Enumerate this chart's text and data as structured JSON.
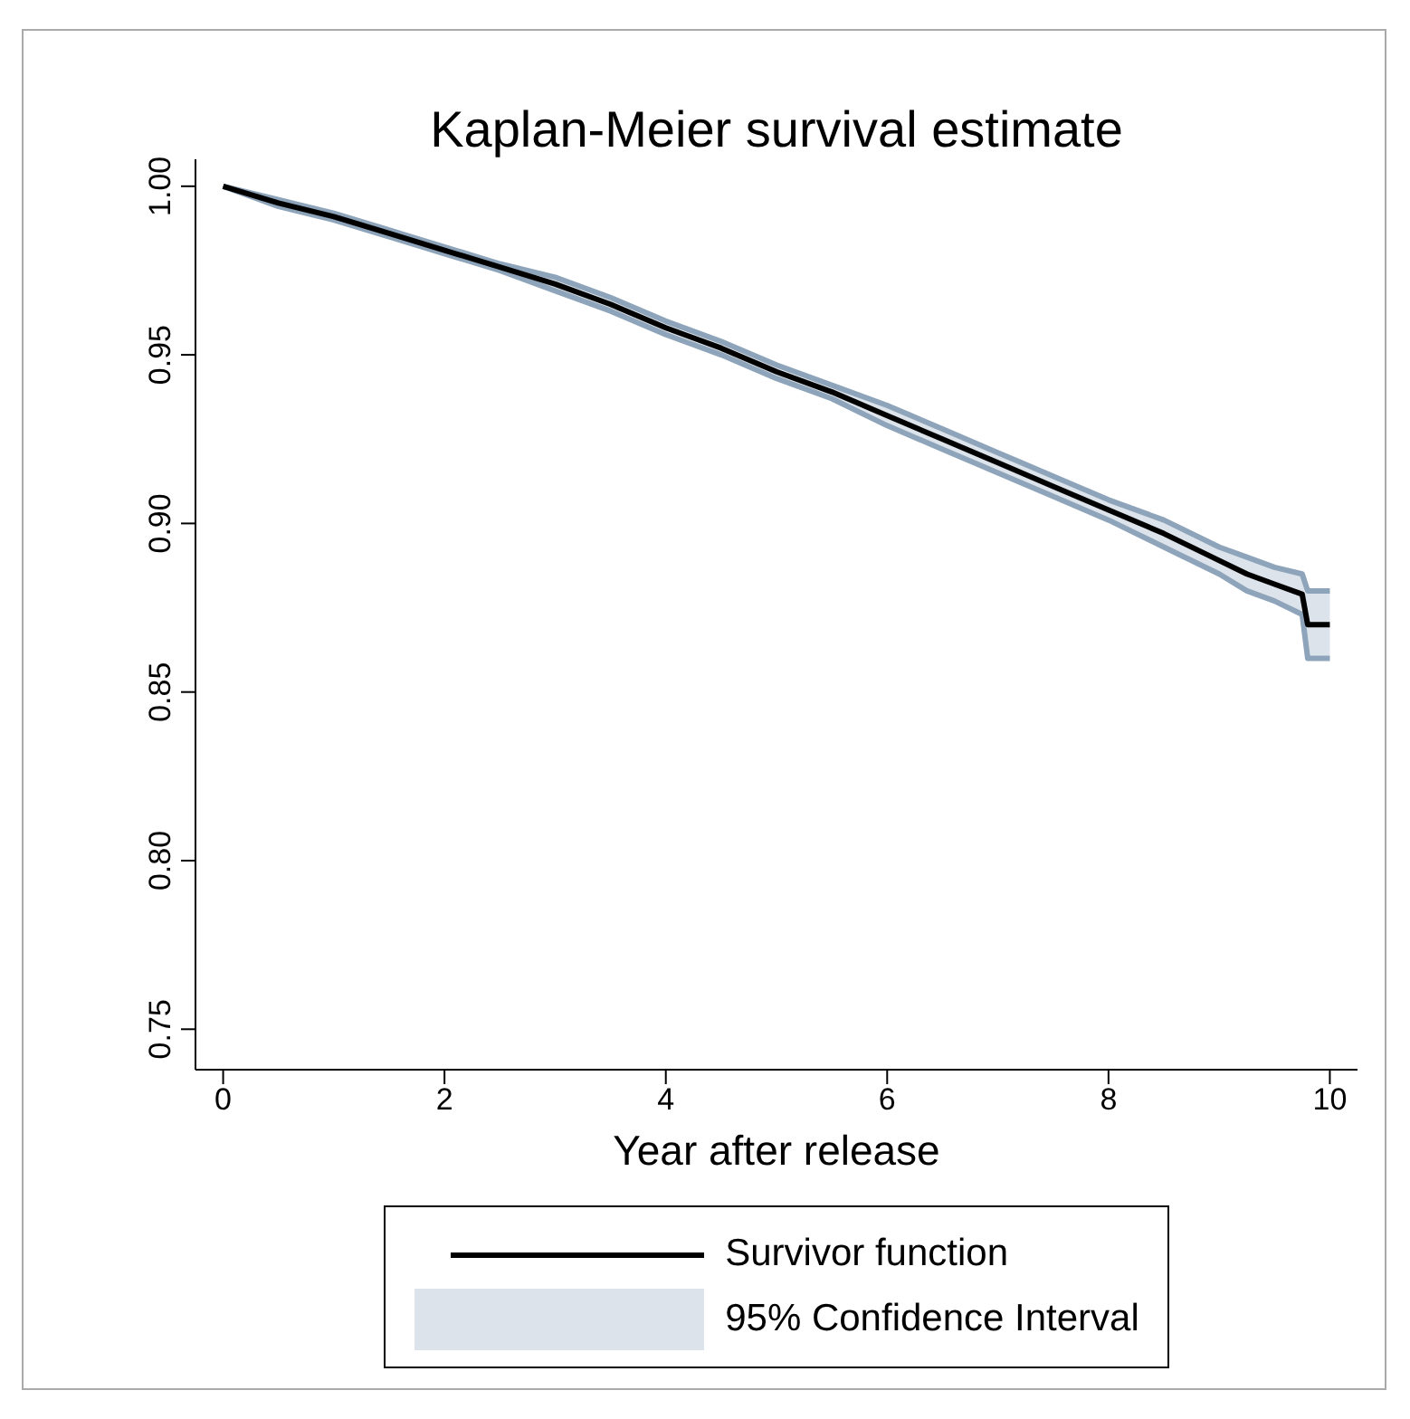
{
  "chart_data": {
    "type": "line",
    "title": "Kaplan-Meier survival estimate",
    "xlabel": "Year after release",
    "x": [
      0,
      0.5,
      1,
      1.5,
      2,
      2.5,
      3,
      3.5,
      4,
      4.5,
      5,
      5.5,
      6,
      6.5,
      7,
      7.5,
      8,
      8.5,
      9,
      9.25,
      9.5,
      9.75,
      9.8,
      10
    ],
    "series": [
      {
        "name": "Survivor function",
        "color": "#000000",
        "values": [
          1.0,
          0.995,
          0.991,
          0.986,
          0.981,
          0.976,
          0.971,
          0.965,
          0.958,
          0.952,
          0.945,
          0.939,
          0.932,
          0.925,
          0.918,
          0.911,
          0.904,
          0.897,
          0.889,
          0.885,
          0.882,
          0.879,
          0.87,
          0.87
        ],
        "lower": [
          1.0,
          0.994,
          0.99,
          0.985,
          0.98,
          0.975,
          0.969,
          0.963,
          0.956,
          0.95,
          0.943,
          0.937,
          0.929,
          0.922,
          0.915,
          0.908,
          0.901,
          0.893,
          0.885,
          0.88,
          0.877,
          0.873,
          0.86,
          0.86
        ],
        "upper": [
          1.0,
          0.996,
          0.992,
          0.987,
          0.982,
          0.977,
          0.973,
          0.967,
          0.96,
          0.954,
          0.947,
          0.941,
          0.935,
          0.928,
          0.921,
          0.914,
          0.907,
          0.901,
          0.893,
          0.89,
          0.887,
          0.885,
          0.88,
          0.88
        ]
      },
      {
        "color": "#8ea4ba",
        "values": [
          1.0,
          0.994,
          0.99,
          0.985,
          0.98,
          0.975,
          0.969,
          0.963,
          0.956,
          0.95,
          0.943,
          0.937,
          0.929,
          0.922,
          0.915,
          0.908,
          0.901,
          0.893,
          0.885,
          0.88,
          0.877,
          0.873,
          0.86,
          0.86
        ]
      },
      {
        "color": "#8ea4ba",
        "values": [
          1.0,
          0.996,
          0.992,
          0.987,
          0.982,
          0.977,
          0.973,
          0.967,
          0.96,
          0.954,
          0.947,
          0.941,
          0.935,
          0.928,
          0.921,
          0.914,
          0.907,
          0.901,
          0.893,
          0.89,
          0.887,
          0.885,
          0.88,
          0.88
        ]
      }
    ],
    "annotations": [
      "95% Confidence Interval"
    ],
    "xlim": [
      -0.25,
      10.25
    ],
    "xticks": [
      0,
      2,
      4,
      6,
      8,
      10
    ],
    "ylim": [
      0.738,
      1.008
    ],
    "yticks": [
      {
        "value": 0.75,
        "label": "0.75"
      },
      {
        "value": 0.8,
        "label": "0.80"
      },
      {
        "value": 0.85,
        "label": "0.85"
      },
      {
        "value": 0.9,
        "label": "0.90"
      },
      {
        "value": 0.95,
        "label": "0.95"
      },
      {
        "value": 1.0,
        "label": "1.00"
      }
    ],
    "grid": false,
    "legend": "bottom"
  }
}
